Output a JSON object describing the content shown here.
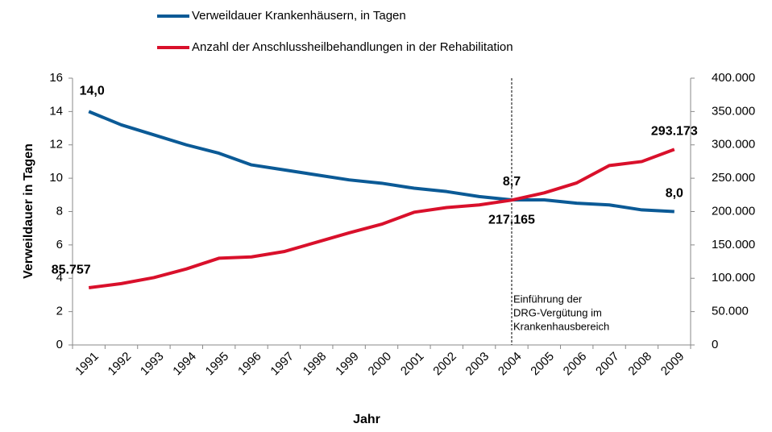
{
  "chart_data": {
    "type": "line",
    "categories": [
      "1991",
      "1992",
      "1993",
      "1994",
      "1995",
      "1996",
      "1997",
      "1998",
      "1999",
      "2000",
      "2001",
      "2002",
      "2003",
      "2004",
      "2005",
      "2006",
      "2007",
      "2008",
      "2009"
    ],
    "series": [
      {
        "name": "Verweildauer  Krankenhäusern,  in Tagen",
        "color": "#0b5a96",
        "axis": "y",
        "values": [
          14.0,
          13.2,
          12.6,
          12.0,
          11.5,
          10.8,
          10.5,
          10.2,
          9.9,
          9.7,
          9.4,
          9.2,
          8.9,
          8.7,
          8.7,
          8.5,
          8.4,
          8.1,
          8.0
        ],
        "value_labels": [
          "14,0",
          null,
          null,
          null,
          null,
          null,
          null,
          null,
          null,
          null,
          null,
          null,
          null,
          "8,7",
          null,
          null,
          null,
          null,
          "8,0"
        ]
      },
      {
        "name": "Anzahl der Anschlussheilbehandlungen  in der Rehabilitation",
        "color": "#d9102b",
        "axis": "y2",
        "values": [
          85757,
          92000,
          101000,
          114000,
          130000,
          132000,
          140000,
          154000,
          168000,
          181000,
          199000,
          206000,
          210000,
          217165,
          228000,
          243000,
          269000,
          275000,
          293173
        ],
        "value_labels": [
          "85.757",
          null,
          null,
          null,
          null,
          null,
          null,
          null,
          null,
          null,
          null,
          null,
          null,
          "217.165",
          null,
          null,
          null,
          null,
          "293.173"
        ]
      }
    ],
    "x_label": "Jahr",
    "y_label": "Verweildauer  in Tagen",
    "ylim": [
      0,
      16
    ],
    "yticks": [
      0,
      2,
      4,
      6,
      8,
      10,
      12,
      14,
      16
    ],
    "y2lim": [
      0,
      400000
    ],
    "y2ticks": [
      0,
      {
        "value": 50000,
        "label": "50.000"
      },
      {
        "value": 100000,
        "label": "100.000"
      },
      {
        "value": 150000,
        "label": "150.000"
      },
      {
        "value": 200000,
        "label": "200.000"
      },
      {
        "value": 250000,
        "label": "250.000"
      },
      {
        "value": 300000,
        "label": "300.000"
      },
      {
        "value": 350000,
        "label": "350.000"
      },
      {
        "value": 400000,
        "label": "400.000"
      }
    ],
    "grid": false,
    "legend": "top",
    "annotation": {
      "x": "2004",
      "lines": [
        "Einführung der",
        "DRG-Vergütung im",
        "Krankenhausbereich"
      ]
    }
  }
}
